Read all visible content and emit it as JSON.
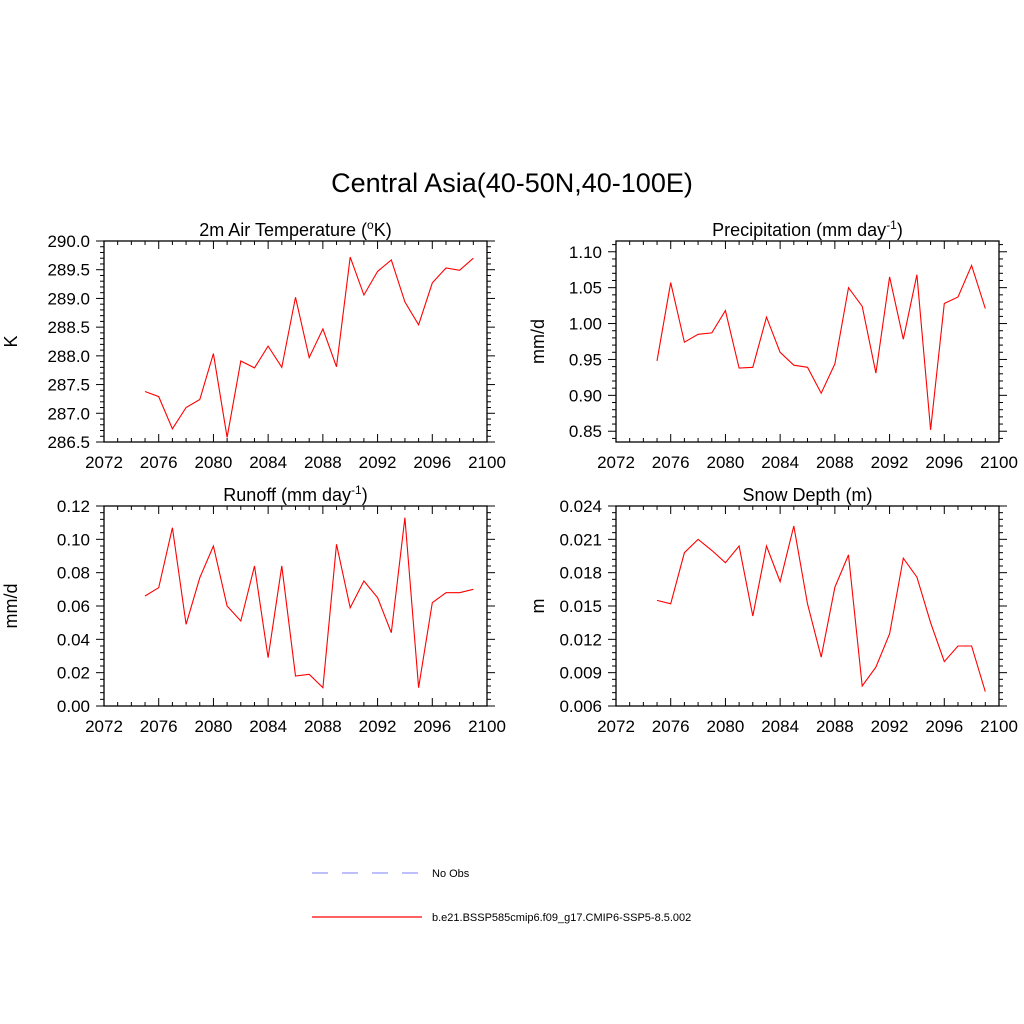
{
  "title": "Central Asia(40-50N,40-100E)",
  "chart_data": [
    {
      "type": "line",
      "title_main": "2m Air Temperature (",
      "title_sup": "o",
      "title_tail": "K)",
      "ylabel": "K",
      "xlim": [
        2072,
        2100
      ],
      "ylim": [
        286.5,
        290.0
      ],
      "xticks": [
        "2072",
        "2076",
        "2080",
        "2084",
        "2088",
        "2092",
        "2096",
        "2100"
      ],
      "yticks": [
        "286.5",
        "287.0",
        "287.5",
        "288.0",
        "288.5",
        "289.0",
        "289.5",
        "290.0"
      ],
      "x": [
        2075,
        2076,
        2077,
        2078,
        2079,
        2080,
        2081,
        2082,
        2083,
        2084,
        2085,
        2086,
        2087,
        2088,
        2089,
        2090,
        2091,
        2092,
        2093,
        2094,
        2095,
        2096,
        2097,
        2098,
        2099
      ],
      "values": [
        287.38,
        287.29,
        286.73,
        287.1,
        287.24,
        288.04,
        286.58,
        287.91,
        287.79,
        288.17,
        287.8,
        289.02,
        287.97,
        288.47,
        287.81,
        289.72,
        289.06,
        289.47,
        289.67,
        288.94,
        288.54,
        289.27,
        289.53,
        289.49,
        289.7
      ]
    },
    {
      "type": "line",
      "title_main": "Precipitation (mm day",
      "title_sup": "-1",
      "title_tail": ")",
      "ylabel": "mm/d",
      "xlim": [
        2072,
        2100
      ],
      "ylim": [
        0.835,
        1.115
      ],
      "xticks": [
        "2072",
        "2076",
        "2080",
        "2084",
        "2088",
        "2092",
        "2096",
        "2100"
      ],
      "yticks": [
        "0.85",
        "0.90",
        "0.95",
        "1.00",
        "1.05",
        "1.10"
      ],
      "x": [
        2075,
        2076,
        2077,
        2078,
        2079,
        2080,
        2081,
        2082,
        2083,
        2084,
        2085,
        2086,
        2087,
        2088,
        2089,
        2090,
        2091,
        2092,
        2093,
        2094,
        2095,
        2096,
        2097,
        2098,
        2099
      ],
      "values": [
        0.948,
        1.057,
        0.974,
        0.985,
        0.987,
        1.018,
        0.938,
        0.939,
        1.009,
        0.96,
        0.942,
        0.939,
        0.903,
        0.944,
        1.05,
        1.024,
        0.931,
        1.065,
        0.978,
        1.068,
        0.852,
        1.028,
        1.037,
        1.081,
        1.021
      ]
    },
    {
      "type": "line",
      "title_main": "Runoff (mm day",
      "title_sup": "-1",
      "title_tail": ")",
      "ylabel": "mm/d",
      "xlim": [
        2072,
        2100
      ],
      "ylim": [
        0.0,
        0.12
      ],
      "xticks": [
        "2072",
        "2076",
        "2080",
        "2084",
        "2088",
        "2092",
        "2096",
        "2100"
      ],
      "yticks": [
        "0.00",
        "0.02",
        "0.04",
        "0.06",
        "0.08",
        "0.10",
        "0.12"
      ],
      "x": [
        2075,
        2076,
        2077,
        2078,
        2079,
        2080,
        2081,
        2082,
        2083,
        2084,
        2085,
        2086,
        2087,
        2088,
        2089,
        2090,
        2091,
        2092,
        2093,
        2094,
        2095,
        2096,
        2097,
        2098,
        2099
      ],
      "values": [
        0.066,
        0.071,
        0.107,
        0.049,
        0.077,
        0.096,
        0.06,
        0.051,
        0.084,
        0.029,
        0.084,
        0.018,
        0.019,
        0.011,
        0.097,
        0.059,
        0.075,
        0.065,
        0.044,
        0.113,
        0.011,
        0.062,
        0.068,
        0.068,
        0.07
      ]
    },
    {
      "type": "line",
      "title_main": "Snow Depth (m)",
      "title_sup": "",
      "title_tail": "",
      "ylabel": "m",
      "xlim": [
        2072,
        2100
      ],
      "ylim": [
        0.006,
        0.024
      ],
      "xticks": [
        "2072",
        "2076",
        "2080",
        "2084",
        "2088",
        "2092",
        "2096",
        "2100"
      ],
      "yticks": [
        "0.006",
        "0.009",
        "0.012",
        "0.015",
        "0.018",
        "0.021",
        "0.024"
      ],
      "x": [
        2075,
        2076,
        2077,
        2078,
        2079,
        2080,
        2081,
        2082,
        2083,
        2084,
        2085,
        2086,
        2087,
        2088,
        2089,
        2090,
        2091,
        2092,
        2093,
        2094,
        2095,
        2096,
        2097,
        2098,
        2099
      ],
      "values": [
        0.0155,
        0.0152,
        0.0198,
        0.021,
        0.02,
        0.0189,
        0.0204,
        0.0141,
        0.0204,
        0.0172,
        0.0222,
        0.0152,
        0.0104,
        0.0167,
        0.0196,
        0.0078,
        0.0095,
        0.0125,
        0.0193,
        0.0176,
        0.0135,
        0.01,
        0.0114,
        0.0114,
        0.0073
      ]
    }
  ],
  "legend": [
    {
      "label": "No Obs",
      "color": "#9999ff",
      "dashed": true
    },
    {
      "label": "b.e21.BSSP585cmip6.f09_g17.CMIP6-SSP5-8.5.002",
      "color": "#ff0000",
      "dashed": false
    }
  ],
  "colors": {
    "series": "#ff0000",
    "obs": "#9999ff",
    "axis": "#000000"
  }
}
